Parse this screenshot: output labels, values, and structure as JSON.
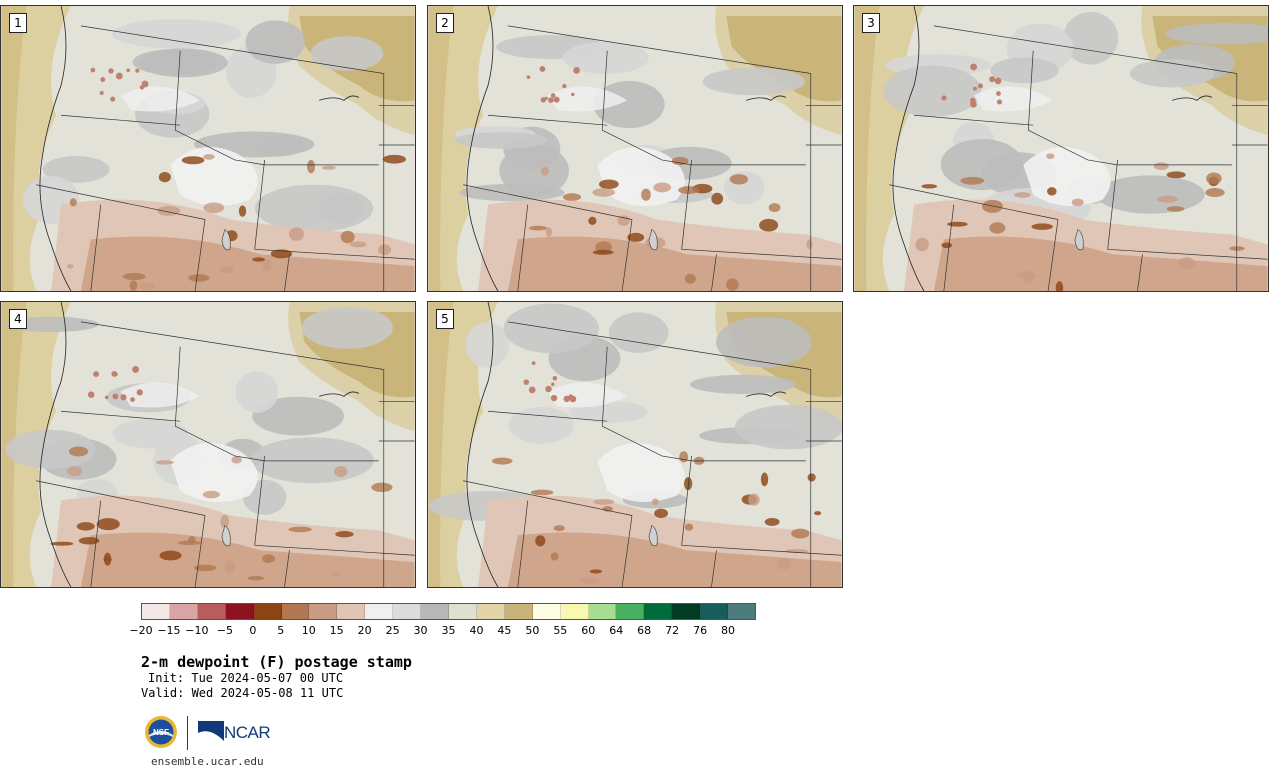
{
  "panels": [
    {
      "label": "1"
    },
    {
      "label": "2"
    },
    {
      "label": "3"
    },
    {
      "label": "4"
    },
    {
      "label": "5"
    }
  ],
  "colorbar": {
    "colors": [
      "#f4e8e6",
      "#d8a4a4",
      "#b85c5c",
      "#8c1420",
      "#8c4414",
      "#b07850",
      "#c89c84",
      "#e0c4b4",
      "#f0f0f0",
      "#dcdcdc",
      "#b8b8b8",
      "#e0e0d0",
      "#e0d4a8",
      "#c8b478",
      "#fffce4",
      "#f8f8b0",
      "#a8dc90",
      "#48b060",
      "#006c3c",
      "#003c24",
      "#185c5c",
      "#4c7c7c"
    ],
    "tick_labels": [
      "−20",
      "−15",
      "−10",
      "−5",
      "0",
      "5",
      "10",
      "15",
      "20",
      "25",
      "30",
      "35",
      "40",
      "45",
      "50",
      "55",
      "60",
      "64",
      "68",
      "72",
      "76",
      "80"
    ]
  },
  "title": "2-m dewpoint (F) postage stamp",
  "init": "Init: Tue 2024-05-07 00 UTC",
  "valid": "Valid: Wed 2024-05-08 11 UTC",
  "logos": {
    "nsf": "NSF",
    "ncar": "NCAR"
  },
  "site": "ensemble.ucar.edu"
}
